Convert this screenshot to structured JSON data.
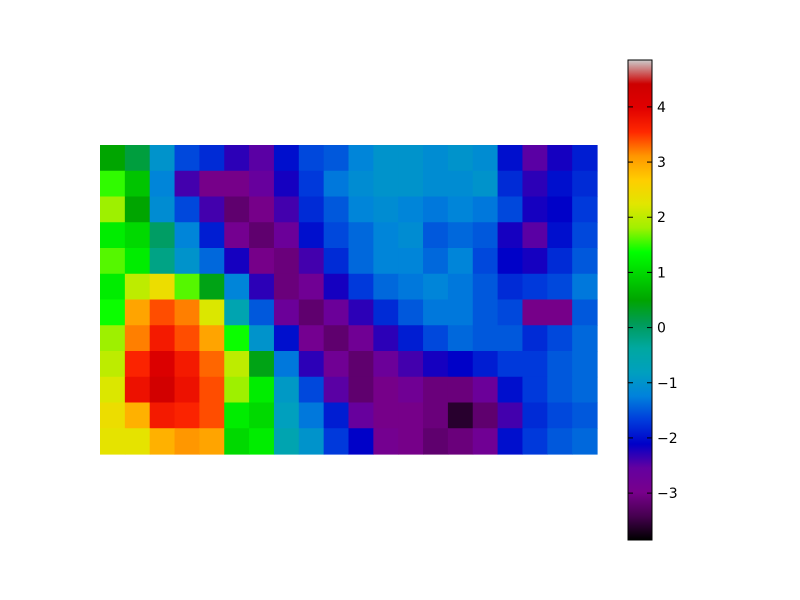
{
  "chart_data": {
    "type": "heatmap",
    "title": "",
    "xlabel": "",
    "ylabel": "",
    "axes_visible": false,
    "colormap": "nipy_spectral",
    "colorbar": {
      "placement": "right",
      "vmin": -3.85,
      "vmax": 4.85,
      "ticks": [
        -3,
        -2,
        -1,
        0,
        1,
        2,
        3,
        4
      ],
      "tick_labels": [
        "−3",
        "−2",
        "−1",
        "0",
        "1",
        "2",
        "3",
        "4"
      ]
    },
    "grid_shape": [
      12,
      20
    ],
    "values": [
      [
        0.5,
        0.2,
        -1.0,
        -1.6,
        -1.8,
        -2.3,
        -2.5,
        -2.0,
        -1.6,
        -1.5,
        -1.2,
        -1.0,
        -1.0,
        -1.1,
        -1.0,
        -1.1,
        -2.0,
        -2.5,
        -2.2,
        -1.9
      ],
      [
        1.5,
        0.8,
        -1.2,
        -2.4,
        -3.0,
        -3.0,
        -2.6,
        -2.2,
        -1.7,
        -1.3,
        -1.1,
        -1.0,
        -1.0,
        -1.1,
        -1.1,
        -1.0,
        -1.8,
        -2.3,
        -2.0,
        -1.8
      ],
      [
        1.8,
        0.5,
        -1.1,
        -1.6,
        -2.4,
        -3.2,
        -3.0,
        -2.4,
        -1.8,
        -1.5,
        -1.2,
        -1.1,
        -1.2,
        -1.3,
        -1.2,
        -1.3,
        -1.6,
        -2.2,
        -2.1,
        -1.7
      ],
      [
        1.2,
        1.0,
        0.0,
        -1.2,
        -1.9,
        -2.9,
        -3.2,
        -2.7,
        -2.0,
        -1.6,
        -1.4,
        -1.2,
        -1.1,
        -1.5,
        -1.4,
        -1.5,
        -2.2,
        -2.5,
        -2.0,
        -1.6
      ],
      [
        1.6,
        1.2,
        -0.2,
        -1.0,
        -1.4,
        -2.2,
        -3.0,
        -3.1,
        -2.4,
        -1.8,
        -1.4,
        -1.2,
        -1.2,
        -1.4,
        -1.2,
        -1.6,
        -2.1,
        -2.2,
        -1.8,
        -1.5
      ],
      [
        1.2,
        2.0,
        2.4,
        1.6,
        0.4,
        -1.2,
        -2.3,
        -3.1,
        -2.8,
        -2.2,
        -1.7,
        -1.4,
        -1.3,
        -1.2,
        -1.3,
        -1.5,
        -1.8,
        -1.7,
        -1.6,
        -1.3
      ],
      [
        1.4,
        3.0,
        3.4,
        3.2,
        2.2,
        -0.6,
        -1.5,
        -2.7,
        -3.2,
        -2.7,
        -2.3,
        -1.8,
        -1.5,
        -1.3,
        -1.3,
        -1.5,
        -1.6,
        -3.0,
        -3.0,
        -1.5
      ],
      [
        1.8,
        3.2,
        3.7,
        3.4,
        3.0,
        1.4,
        -1.0,
        -2.0,
        -2.9,
        -3.2,
        -2.8,
        -2.3,
        -1.9,
        -1.6,
        -1.4,
        -1.5,
        -1.5,
        -1.8,
        -1.6,
        -1.4
      ],
      [
        2.0,
        3.6,
        4.1,
        3.7,
        3.3,
        2.0,
        0.4,
        -1.3,
        -2.3,
        -2.8,
        -3.2,
        -2.7,
        -2.4,
        -2.2,
        -2.1,
        -1.9,
        -1.7,
        -1.7,
        -1.5,
        -1.4
      ],
      [
        2.2,
        3.8,
        4.3,
        3.8,
        3.4,
        1.8,
        1.2,
        -0.9,
        -1.6,
        -2.5,
        -3.2,
        -3.0,
        -2.8,
        -3.1,
        -3.1,
        -2.7,
        -2.0,
        -1.7,
        -1.5,
        -1.4
      ],
      [
        2.4,
        2.9,
        3.7,
        3.6,
        3.4,
        1.2,
        1.0,
        -0.8,
        -1.3,
        -1.9,
        -2.6,
        -3.0,
        -3.0,
        -3.1,
        -3.6,
        -3.2,
        -2.4,
        -1.8,
        -1.6,
        -1.5
      ],
      [
        2.3,
        2.3,
        2.9,
        3.1,
        3.0,
        1.0,
        1.2,
        -0.6,
        -1.0,
        -1.7,
        -2.1,
        -2.9,
        -3.0,
        -3.2,
        -3.1,
        -2.8,
        -2.0,
        -1.7,
        -1.5,
        -1.4
      ]
    ]
  }
}
